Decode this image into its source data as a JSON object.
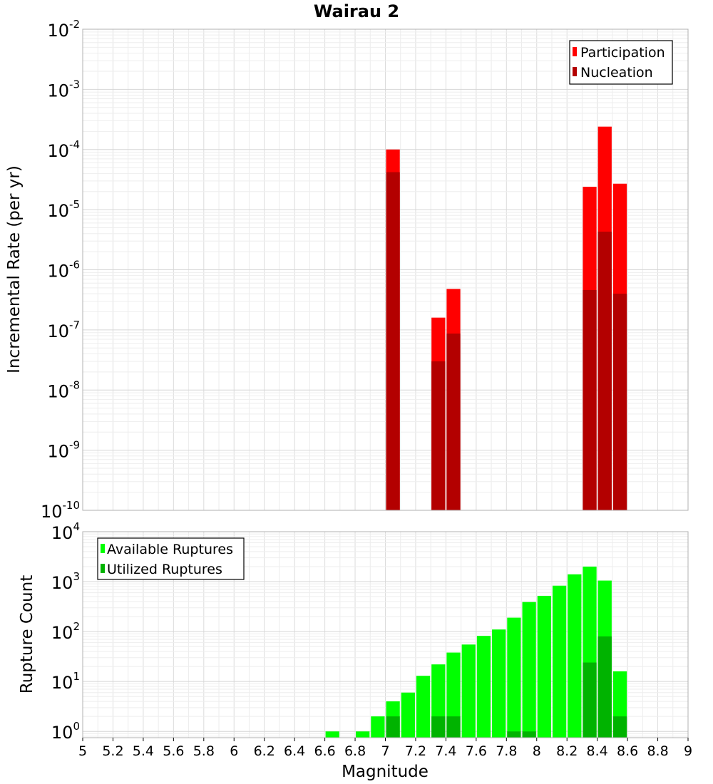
{
  "chart_data": [
    {
      "type": "bar",
      "title": "Wairau 2",
      "ylabel": "Incremental Rate (per yr)",
      "xlabel": "",
      "xlim": [
        5,
        9
      ],
      "ylim": [
        1e-10,
        0.01
      ],
      "yscale": "log",
      "bar_width": 0.1,
      "grid": true,
      "legend_position": "top-right",
      "y_tick_exponents": [
        -10,
        -9,
        -8,
        -7,
        -6,
        -5,
        -4,
        -3,
        -2
      ],
      "series": [
        {
          "name": "Participation",
          "color": "#ff0000",
          "points": [
            {
              "x": 7.05,
              "y": 0.0001
            },
            {
              "x": 7.35,
              "y": 1.6e-07
            },
            {
              "x": 7.45,
              "y": 4.8e-07
            },
            {
              "x": 8.35,
              "y": 2.4e-05
            },
            {
              "x": 8.45,
              "y": 0.00024
            },
            {
              "x": 8.55,
              "y": 2.7e-05
            }
          ]
        },
        {
          "name": "Nucleation",
          "color": "#b30000",
          "points": [
            {
              "x": 7.05,
              "y": 4.2e-05
            },
            {
              "x": 7.35,
              "y": 3e-08
            },
            {
              "x": 7.45,
              "y": 8.7e-08
            },
            {
              "x": 8.35,
              "y": 4.6e-07
            },
            {
              "x": 8.45,
              "y": 4.3e-06
            },
            {
              "x": 8.55,
              "y": 4e-07
            }
          ]
        }
      ]
    },
    {
      "type": "bar",
      "ylabel": "Rupture Count",
      "xlabel": "Magnitude",
      "xlim": [
        5,
        9
      ],
      "ylim": [
        0.75,
        10000
      ],
      "yscale": "log",
      "bar_width": 0.1,
      "grid": true,
      "legend_position": "top-left",
      "y_tick_exponents": [
        0,
        1,
        2,
        3,
        4
      ],
      "x_ticks": [
        "5",
        "5.2",
        "5.4",
        "5.6",
        "5.8",
        "6",
        "6.2",
        "6.4",
        "6.6",
        "6.8",
        "7",
        "7.2",
        "7.4",
        "7.6",
        "7.8",
        "8",
        "8.2",
        "8.4",
        "8.6",
        "8.8",
        "9"
      ],
      "series": [
        {
          "name": "Available Ruptures",
          "color": "#00ff00",
          "points": [
            {
              "x": 6.65,
              "y": 1
            },
            {
              "x": 6.85,
              "y": 1
            },
            {
              "x": 6.95,
              "y": 2
            },
            {
              "x": 7.05,
              "y": 4
            },
            {
              "x": 7.15,
              "y": 6
            },
            {
              "x": 7.25,
              "y": 13
            },
            {
              "x": 7.35,
              "y": 22
            },
            {
              "x": 7.45,
              "y": 38
            },
            {
              "x": 7.55,
              "y": 55
            },
            {
              "x": 7.65,
              "y": 82
            },
            {
              "x": 7.75,
              "y": 110
            },
            {
              "x": 7.85,
              "y": 190
            },
            {
              "x": 7.95,
              "y": 390
            },
            {
              "x": 8.05,
              "y": 520
            },
            {
              "x": 8.15,
              "y": 830
            },
            {
              "x": 8.25,
              "y": 1400
            },
            {
              "x": 8.35,
              "y": 2000
            },
            {
              "x": 8.45,
              "y": 1050
            },
            {
              "x": 8.55,
              "y": 16
            }
          ]
        },
        {
          "name": "Utilized Ruptures",
          "color": "#00b300",
          "points": [
            {
              "x": 7.05,
              "y": 2
            },
            {
              "x": 7.35,
              "y": 2
            },
            {
              "x": 7.45,
              "y": 2
            },
            {
              "x": 7.85,
              "y": 1
            },
            {
              "x": 7.95,
              "y": 1
            },
            {
              "x": 8.35,
              "y": 24
            },
            {
              "x": 8.45,
              "y": 80
            },
            {
              "x": 8.55,
              "y": 2
            }
          ]
        }
      ]
    }
  ]
}
